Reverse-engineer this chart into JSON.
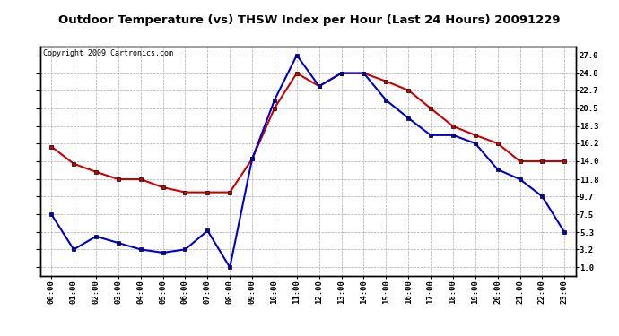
{
  "title": "Outdoor Temperature (vs) THSW Index per Hour (Last 24 Hours) 20091229",
  "copyright": "Copyright 2009 Cartronics.com",
  "hours": [
    "00:00",
    "01:00",
    "02:00",
    "03:00",
    "04:00",
    "05:00",
    "06:00",
    "07:00",
    "08:00",
    "09:00",
    "10:00",
    "11:00",
    "12:00",
    "13:00",
    "14:00",
    "15:00",
    "16:00",
    "17:00",
    "18:00",
    "19:00",
    "20:00",
    "21:00",
    "22:00",
    "23:00"
  ],
  "temp_red": [
    15.8,
    13.7,
    12.7,
    11.8,
    11.8,
    10.8,
    10.2,
    10.2,
    10.2,
    14.3,
    20.5,
    24.8,
    23.2,
    24.8,
    24.8,
    23.8,
    22.7,
    20.5,
    18.3,
    17.2,
    16.2,
    14.0,
    14.0,
    14.0
  ],
  "thsw_blue": [
    7.5,
    3.2,
    4.8,
    4.0,
    3.2,
    2.8,
    3.2,
    5.5,
    1.0,
    14.3,
    21.5,
    27.0,
    23.2,
    24.8,
    24.8,
    21.5,
    19.3,
    17.2,
    17.2,
    16.2,
    13.0,
    11.8,
    9.7,
    5.3
  ],
  "ylim": [
    0.0,
    28.0
  ],
  "yticks_right": [
    1.0,
    3.2,
    5.3,
    7.5,
    9.7,
    11.8,
    14.0,
    16.2,
    18.3,
    20.5,
    22.7,
    24.8,
    27.0
  ],
  "bg_color": "#ffffff",
  "grid_color": "#aaaaaa",
  "red_color": "#cc0000",
  "blue_color": "#0000cc",
  "title_bg": "#c8c8c8",
  "marker_size": 3.5,
  "linewidth": 1.5
}
